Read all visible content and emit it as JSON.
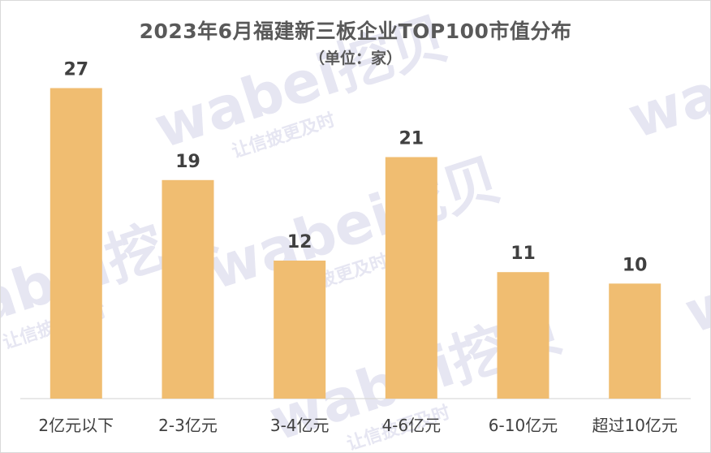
{
  "chart_data": {
    "type": "bar",
    "title": "2023年6月福建新三板企业TOP100市值分布",
    "subtitle": "（单位：家）",
    "categories": [
      "2亿元以下",
      "2-3亿元",
      "3-4亿元",
      "4-6亿元",
      "6-10亿元",
      "超过10亿元"
    ],
    "series": [
      {
        "values": [
          27,
          19,
          12,
          21,
          11,
          10
        ]
      }
    ],
    "ylim": [
      0,
      30
    ],
    "grid": false,
    "legend": "none",
    "colors": {
      "bar": "#f0bd71",
      "label": "#404040",
      "title": "#595959"
    }
  },
  "watermark": {
    "brand": "wabei挖贝",
    "tagline": "让信披更及时"
  }
}
